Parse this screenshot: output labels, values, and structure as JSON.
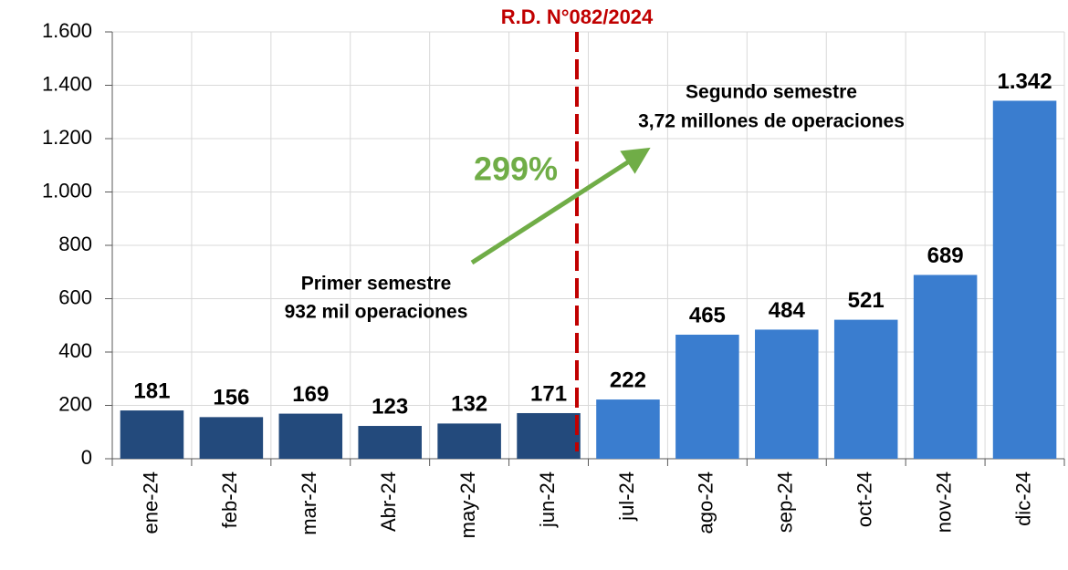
{
  "chart_data": {
    "type": "bar",
    "categories": [
      "ene-24",
      "feb-24",
      "mar-24",
      "Abr-24",
      "may-24",
      "jun-24",
      "jul-24",
      "ago-24",
      "sep-24",
      "oct-24",
      "nov-24",
      "dic-24"
    ],
    "values": [
      181,
      156,
      169,
      123,
      132,
      171,
      222,
      465,
      484,
      521,
      689,
      1342
    ],
    "value_labels": [
      "181",
      "156",
      "169",
      "123",
      "132",
      "171",
      "222",
      "465",
      "484",
      "521",
      "689",
      "1.342"
    ],
    "colors": [
      "#234a7c",
      "#234a7c",
      "#234a7c",
      "#234a7c",
      "#234a7c",
      "#234a7c",
      "#3a7dcf",
      "#3a7dcf",
      "#3a7dcf",
      "#3a7dcf",
      "#3a7dcf",
      "#3a7dcf"
    ],
    "ylim": [
      0,
      1600
    ],
    "yticks": [
      0,
      200,
      400,
      600,
      800,
      {
        "value": 1000,
        "label": "1.000"
      },
      {
        "value": 1200,
        "label": "1.200"
      },
      {
        "value": 1400,
        "label": "1.400"
      },
      {
        "value": 1600,
        "label": "1.600"
      }
    ],
    "grid": true,
    "annotations": {
      "rd": "R.D. N°082/2024",
      "growth": "299%",
      "first_half": [
        "Primer semestre",
        "932 mil operaciones"
      ],
      "second_half": [
        "Segundo semestre",
        "3,72 millones de operaciones"
      ]
    }
  }
}
